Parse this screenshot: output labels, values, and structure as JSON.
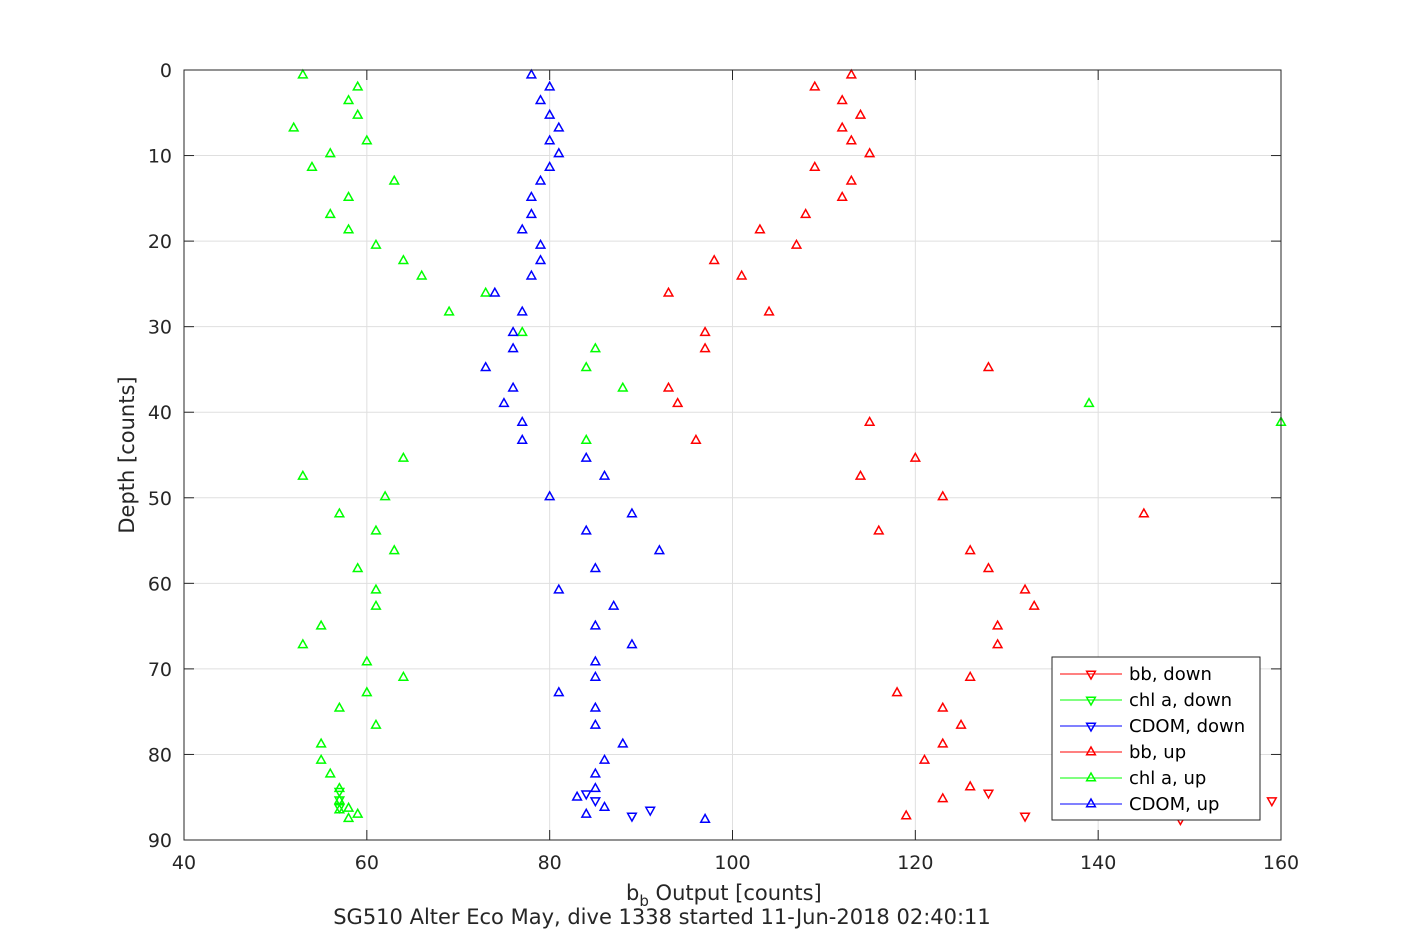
{
  "chart_data": {
    "type": "scatter",
    "xlabel_main": "b",
    "xlabel_sub": "b",
    "xlabel_rest": " Output [counts]",
    "ylabel": "Depth [counts]",
    "subtitle": "SG510 Alter Eco May, dive 1338 started 11-Jun-2018 02:40:11",
    "xlim": [
      40,
      160
    ],
    "ylim": [
      0,
      90
    ],
    "y_reversed": true,
    "grid": true,
    "legend_position": "bottom-right",
    "xticks": [
      "40",
      "60",
      "80",
      "100",
      "120",
      "140",
      "160"
    ],
    "yticks": [
      "0",
      "10",
      "20",
      "30",
      "40",
      "50",
      "60",
      "70",
      "80",
      "90"
    ],
    "series": [
      {
        "name": "bb, down",
        "color": "#ff0000",
        "marker": "triangle-down",
        "points": [
          [
            128,
            84.5
          ],
          [
            132,
            87.2
          ],
          [
            149,
            87.6
          ],
          [
            159,
            85.4
          ]
        ]
      },
      {
        "name": "chl a, down",
        "color": "#00ff00",
        "marker": "triangle-down",
        "points": [
          [
            57,
            84.3
          ],
          [
            57,
            85.3
          ],
          [
            57,
            86.2
          ]
        ]
      },
      {
        "name": "CDOM, down",
        "color": "#0000ff",
        "marker": "triangle-down",
        "points": [
          [
            84,
            84.6
          ],
          [
            85,
            85.4
          ],
          [
            89,
            87.2
          ],
          [
            91,
            86.5
          ]
        ]
      },
      {
        "name": "bb, up",
        "color": "#ff0000",
        "marker": "triangle-up",
        "points": [
          [
            113,
            0.6
          ],
          [
            109,
            2.0
          ],
          [
            112,
            3.6
          ],
          [
            114,
            5.3
          ],
          [
            112,
            6.8
          ],
          [
            113,
            8.3
          ],
          [
            115,
            9.8
          ],
          [
            109,
            11.4
          ],
          [
            113,
            13.0
          ],
          [
            112,
            14.9
          ],
          [
            108,
            16.9
          ],
          [
            103,
            18.7
          ],
          [
            107,
            20.5
          ],
          [
            98,
            22.3
          ],
          [
            101,
            24.1
          ],
          [
            93,
            26.1
          ],
          [
            104,
            28.3
          ],
          [
            97,
            30.7
          ],
          [
            97,
            32.6
          ],
          [
            128,
            34.8
          ],
          [
            93,
            37.2
          ],
          [
            94,
            39.0
          ],
          [
            115,
            41.2
          ],
          [
            96,
            43.3
          ],
          [
            120,
            45.4
          ],
          [
            114,
            47.5
          ],
          [
            123,
            49.9
          ],
          [
            145,
            51.9
          ],
          [
            116,
            53.9
          ],
          [
            126,
            56.2
          ],
          [
            128,
            58.3
          ],
          [
            132,
            60.8
          ],
          [
            133,
            62.7
          ],
          [
            129,
            65.0
          ],
          [
            129,
            67.2
          ],
          [
            126,
            71.0
          ],
          [
            118,
            72.8
          ],
          [
            123,
            74.6
          ],
          [
            125,
            76.6
          ],
          [
            123,
            78.8
          ],
          [
            121,
            80.7
          ],
          [
            126,
            83.8
          ],
          [
            123,
            85.2
          ],
          [
            119,
            87.2
          ]
        ]
      },
      {
        "name": "chl a, up",
        "color": "#00ff00",
        "marker": "triangle-up",
        "points": [
          [
            53,
            0.6
          ],
          [
            59,
            2.0
          ],
          [
            58,
            3.6
          ],
          [
            59,
            5.3
          ],
          [
            52,
            6.8
          ],
          [
            60,
            8.3
          ],
          [
            56,
            9.8
          ],
          [
            54,
            11.4
          ],
          [
            63,
            13.0
          ],
          [
            58,
            14.9
          ],
          [
            56,
            16.9
          ],
          [
            58,
            18.7
          ],
          [
            61,
            20.5
          ],
          [
            64,
            22.3
          ],
          [
            66,
            24.1
          ],
          [
            73,
            26.1
          ],
          [
            69,
            28.3
          ],
          [
            77,
            30.7
          ],
          [
            85,
            32.6
          ],
          [
            84,
            34.8
          ],
          [
            88,
            37.2
          ],
          [
            139,
            39.0
          ],
          [
            160,
            41.2
          ],
          [
            84,
            43.3
          ],
          [
            64,
            45.4
          ],
          [
            53,
            47.5
          ],
          [
            62,
            49.9
          ],
          [
            57,
            51.9
          ],
          [
            61,
            53.9
          ],
          [
            63,
            56.2
          ],
          [
            59,
            58.3
          ],
          [
            61,
            60.8
          ],
          [
            61,
            62.7
          ],
          [
            55,
            65.0
          ],
          [
            53,
            67.2
          ],
          [
            60,
            69.2
          ],
          [
            64,
            71.0
          ],
          [
            60,
            72.8
          ],
          [
            57,
            74.6
          ],
          [
            61,
            76.6
          ],
          [
            55,
            78.8
          ],
          [
            55,
            80.7
          ],
          [
            56,
            82.3
          ],
          [
            57,
            84.0
          ],
          [
            57,
            85.4
          ],
          [
            57,
            86.5
          ],
          [
            58,
            86.3
          ],
          [
            59,
            87.0
          ],
          [
            58,
            87.5
          ]
        ]
      },
      {
        "name": "CDOM, up",
        "color": "#0000ff",
        "marker": "triangle-up",
        "points": [
          [
            78,
            0.6
          ],
          [
            80,
            2.0
          ],
          [
            79,
            3.6
          ],
          [
            80,
            5.3
          ],
          [
            81,
            6.8
          ],
          [
            80,
            8.3
          ],
          [
            81,
            9.8
          ],
          [
            80,
            11.4
          ],
          [
            79,
            13.0
          ],
          [
            78,
            14.9
          ],
          [
            78,
            16.9
          ],
          [
            77,
            18.7
          ],
          [
            79,
            20.5
          ],
          [
            79,
            22.3
          ],
          [
            78,
            24.1
          ],
          [
            74,
            26.1
          ],
          [
            77,
            28.3
          ],
          [
            76,
            30.7
          ],
          [
            76,
            32.6
          ],
          [
            73,
            34.8
          ],
          [
            76,
            37.2
          ],
          [
            75,
            39.0
          ],
          [
            77,
            41.2
          ],
          [
            77,
            43.3
          ],
          [
            84,
            45.4
          ],
          [
            86,
            47.5
          ],
          [
            80,
            49.9
          ],
          [
            89,
            51.9
          ],
          [
            84,
            53.9
          ],
          [
            92,
            56.2
          ],
          [
            85,
            58.3
          ],
          [
            81,
            60.8
          ],
          [
            87,
            62.7
          ],
          [
            85,
            65.0
          ],
          [
            89,
            67.2
          ],
          [
            85,
            69.2
          ],
          [
            85,
            71.0
          ],
          [
            81,
            72.8
          ],
          [
            85,
            74.6
          ],
          [
            85,
            76.6
          ],
          [
            88,
            78.8
          ],
          [
            86,
            80.7
          ],
          [
            85,
            82.3
          ],
          [
            85,
            84.0
          ],
          [
            83,
            85.0
          ],
          [
            86,
            86.2
          ],
          [
            84,
            87.0
          ],
          [
            97,
            87.6
          ]
        ]
      }
    ]
  }
}
